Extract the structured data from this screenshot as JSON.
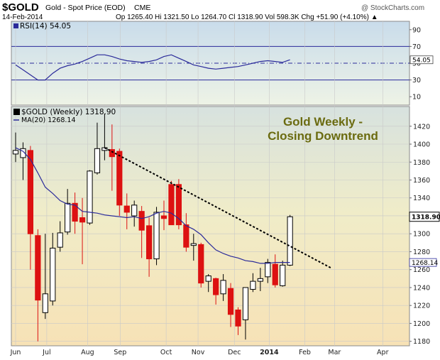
{
  "header": {
    "ticker": "$GOLD",
    "name": "Gold - Spot Price (EOD)",
    "exchange": "CME",
    "date": "14-Feb-2014",
    "quote": "Op 1265.40 Hi 1321.50 Lo 1264.70 Cl 1318.90 Vol 598.3K Chg +51.90 (+4.10%) ▲",
    "watermark": "@ StockCharts.com"
  },
  "rsi": {
    "label": "RSI(14) 54.05",
    "current_label": "54.05",
    "axis_ticks": [
      "90",
      "70",
      "50",
      "30",
      "10"
    ]
  },
  "price": {
    "legend_symbol": "$GOLD (Weekly) 1318.90",
    "legend_ma": "MA(20) 1268.14",
    "last_label": "1318.90",
    "ma_label": "1268.14",
    "axis_ticks": [
      "1420",
      "1400",
      "1380",
      "1360",
      "1340",
      "1320",
      "1300",
      "1280",
      "1260",
      "1240",
      "1220",
      "1200",
      "1180"
    ],
    "annotation_line1": "Gold Weekly -",
    "annotation_line2": "Closing Downtrend"
  },
  "months": [
    "Jun",
    "Jul",
    "Aug",
    "Sep",
    "Oct",
    "Nov",
    "Dec",
    "2014",
    "Feb",
    "Mar",
    "Apr"
  ],
  "colors": {
    "up": "#000000",
    "down": "#dd1111",
    "ma": "#2a2a9a",
    "rsi_line": "#2a2a9a",
    "rsi_fill": "#7fd6d6",
    "grid": "#c9c9c9",
    "trendline": "#000000",
    "annotation": "#6b6b10"
  },
  "chart_data": {
    "type": "candlestick",
    "title": "$GOLD Gold - Spot Price (EOD) CME",
    "period": "Weekly",
    "ylim": [
      1175,
      1442
    ],
    "rsi_ylim": [
      0,
      100
    ],
    "rsi_levels": [
      70,
      50,
      30
    ],
    "candles": [
      {
        "o": 1389,
        "h": 1413,
        "l": 1380,
        "c": 1393
      },
      {
        "o": 1385,
        "h": 1402,
        "l": 1360,
        "c": 1395
      },
      {
        "o": 1393,
        "h": 1398,
        "l": 1260,
        "c": 1300
      },
      {
        "o": 1298,
        "h": 1305,
        "l": 1180,
        "c": 1226
      },
      {
        "o": 1212,
        "h": 1300,
        "l": 1205,
        "c": 1233
      },
      {
        "o": 1225,
        "h": 1301,
        "l": 1220,
        "c": 1284
      },
      {
        "o": 1285,
        "h": 1314,
        "l": 1280,
        "c": 1301
      },
      {
        "o": 1302,
        "h": 1350,
        "l": 1299,
        "c": 1334
      },
      {
        "o": 1334,
        "h": 1346,
        "l": 1300,
        "c": 1314
      },
      {
        "o": 1318,
        "h": 1340,
        "l": 1266,
        "c": 1313
      },
      {
        "o": 1312,
        "h": 1371,
        "l": 1310,
        "c": 1370
      },
      {
        "o": 1368,
        "h": 1424,
        "l": 1366,
        "c": 1395
      },
      {
        "o": 1393,
        "h": 1434,
        "l": 1382,
        "c": 1396
      },
      {
        "o": 1394,
        "h": 1422,
        "l": 1348,
        "c": 1386
      },
      {
        "o": 1392,
        "h": 1395,
        "l": 1320,
        "c": 1332
      },
      {
        "o": 1331,
        "h": 1345,
        "l": 1305,
        "c": 1324
      },
      {
        "o": 1320,
        "h": 1337,
        "l": 1308,
        "c": 1332
      },
      {
        "o": 1325,
        "h": 1331,
        "l": 1273,
        "c": 1304
      },
      {
        "o": 1309,
        "h": 1318,
        "l": 1252,
        "c": 1272
      },
      {
        "o": 1272,
        "h": 1330,
        "l": 1265,
        "c": 1324
      },
      {
        "o": 1320,
        "h": 1337,
        "l": 1304,
        "c": 1317
      },
      {
        "o": 1355,
        "h": 1359,
        "l": 1310,
        "c": 1310
      },
      {
        "o": 1355,
        "h": 1361,
        "l": 1305,
        "c": 1310
      },
      {
        "o": 1310,
        "h": 1323,
        "l": 1280,
        "c": 1285
      },
      {
        "o": 1287,
        "h": 1300,
        "l": 1270,
        "c": 1289
      },
      {
        "o": 1288,
        "h": 1290,
        "l": 1240,
        "c": 1245
      },
      {
        "o": 1247,
        "h": 1255,
        "l": 1235,
        "c": 1253
      },
      {
        "o": 1250,
        "h": 1251,
        "l": 1221,
        "c": 1232
      },
      {
        "o": 1233,
        "h": 1255,
        "l": 1225,
        "c": 1248
      },
      {
        "o": 1239,
        "h": 1245,
        "l": 1196,
        "c": 1210
      },
      {
        "o": 1215,
        "h": 1218,
        "l": 1187,
        "c": 1197
      },
      {
        "o": 1204,
        "h": 1240,
        "l": 1182,
        "c": 1240
      },
      {
        "o": 1238,
        "h": 1256,
        "l": 1235,
        "c": 1247
      },
      {
        "o": 1247,
        "h": 1262,
        "l": 1236,
        "c": 1250
      },
      {
        "o": 1252,
        "h": 1272,
        "l": 1245,
        "c": 1268
      },
      {
        "o": 1266,
        "h": 1277,
        "l": 1240,
        "c": 1243
      },
      {
        "o": 1242,
        "h": 1270,
        "l": 1241,
        "c": 1265
      },
      {
        "o": 1265,
        "h": 1321,
        "l": 1264,
        "c": 1319
      }
    ],
    "ma20": [
      1396,
      1392,
      1383,
      1368,
      1352,
      1345,
      1337,
      1333,
      1332,
      1325,
      1324,
      1323,
      1321,
      1320,
      1319,
      1318,
      1319,
      1317,
      1319,
      1323,
      1325,
      1323,
      1317,
      1309,
      1305,
      1299,
      1290,
      1282,
      1278,
      1275,
      1273,
      1270,
      1269,
      1267,
      1267,
      1268,
      1268,
      1268
    ],
    "rsi": [
      48,
      42,
      36,
      30,
      30,
      38,
      44,
      47,
      49,
      52,
      56,
      60,
      60,
      58,
      55,
      53,
      52,
      51,
      52,
      54,
      58,
      60,
      56,
      52,
      48,
      46,
      44,
      43,
      44,
      45,
      46,
      48,
      50,
      52,
      53,
      52,
      51,
      54.05
    ],
    "trendline": {
      "start_week": 12,
      "start_price": 1396,
      "end_week": 42.5,
      "end_price": 1262
    }
  }
}
